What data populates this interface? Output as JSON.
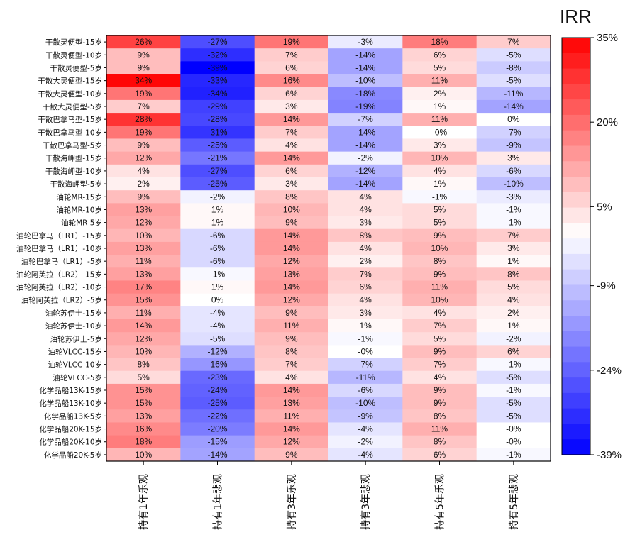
{
  "chart_data": {
    "type": "heatmap",
    "colorbar": {
      "title": "IRR",
      "min": -39,
      "max": 35,
      "ticks": [
        "35%",
        "20%",
        "5%",
        "-9%",
        "-24%",
        "-39%"
      ],
      "tick_values": [
        35,
        20,
        5,
        -9,
        -24,
        -39
      ],
      "colors": {
        "low": "#0000ff",
        "mid": "#ffffff",
        "high": "#ff0000"
      }
    },
    "columns": [
      "持有1年乐观",
      "持有1年悲观",
      "持有3年乐观",
      "持有3年悲观",
      "持有5年乐观",
      "持有5年悲观"
    ],
    "rows": [
      "干散灵便型-15岁",
      "干散灵便型-10岁",
      "干散灵便型-5岁",
      "干散大灵便型-15岁",
      "干散大灵便型-10岁",
      "干散大灵便型-5岁",
      "干散巴拿马型-15岁",
      "干散巴拿马型-10岁",
      "干散巴拿马型-5岁",
      "干散海岬型-15岁",
      "干散海岬型-10岁",
      "干散海岬型-5岁",
      "油轮MR-15岁",
      "油轮MR-10岁",
      "油轮MR-5岁",
      "油轮巴拿马（LR1）-15岁",
      "油轮巴拿马（LR1）-10岁",
      "油轮巴拿马（LR1）-5岁",
      "油轮阿芙拉（LR2）-15岁",
      "油轮阿芙拉（LR2）-10岁",
      "油轮阿芙拉（LR2）-5岁",
      "油轮苏伊士-15岁",
      "油轮苏伊士-10岁",
      "油轮苏伊士-5岁",
      "油轮VLCC-15岁",
      "油轮VLCC-10岁",
      "油轮VLCC-5岁",
      "化学品船13K-15岁",
      "化学品船13K-10岁",
      "化学品船13K-5岁",
      "化学品船20K-15岁",
      "化学品船20K-10岁",
      "化学品船20K-5岁"
    ],
    "labels": [
      [
        "26%",
        "-27%",
        "19%",
        "-3%",
        "18%",
        "7%"
      ],
      [
        "9%",
        "-32%",
        "7%",
        "-14%",
        "6%",
        "-5%"
      ],
      [
        "9%",
        "-39%",
        "6%",
        "-14%",
        "5%",
        "-8%"
      ],
      [
        "34%",
        "-33%",
        "16%",
        "-10%",
        "11%",
        "-5%"
      ],
      [
        "19%",
        "-34%",
        "6%",
        "-18%",
        "2%",
        "-11%"
      ],
      [
        "7%",
        "-29%",
        "3%",
        "-19%",
        "1%",
        "-14%"
      ],
      [
        "28%",
        "-28%",
        "14%",
        "-7%",
        "11%",
        "0%"
      ],
      [
        "19%",
        "-31%",
        "7%",
        "-14%",
        "-0%",
        "-7%"
      ],
      [
        "9%",
        "-25%",
        "4%",
        "-14%",
        "3%",
        "-9%"
      ],
      [
        "12%",
        "-21%",
        "14%",
        "-2%",
        "10%",
        "3%"
      ],
      [
        "4%",
        "-27%",
        "6%",
        "-12%",
        "4%",
        "-6%"
      ],
      [
        "2%",
        "-25%",
        "3%",
        "-14%",
        "1%",
        "-10%"
      ],
      [
        "9%",
        "-2%",
        "8%",
        "4%",
        "-1%",
        "-3%"
      ],
      [
        "13%",
        "1%",
        "10%",
        "4%",
        "5%",
        "-1%"
      ],
      [
        "12%",
        "1%",
        "9%",
        "3%",
        "5%",
        "-1%"
      ],
      [
        "10%",
        "-6%",
        "14%",
        "8%",
        "9%",
        "7%"
      ],
      [
        "13%",
        "-6%",
        "14%",
        "4%",
        "10%",
        "3%"
      ],
      [
        "11%",
        "-6%",
        "12%",
        "2%",
        "8%",
        "1%"
      ],
      [
        "13%",
        "-1%",
        "13%",
        "7%",
        "9%",
        "8%"
      ],
      [
        "17%",
        "1%",
        "14%",
        "6%",
        "11%",
        "5%"
      ],
      [
        "15%",
        "0%",
        "12%",
        "4%",
        "10%",
        "4%"
      ],
      [
        "11%",
        "-4%",
        "9%",
        "3%",
        "4%",
        "2%"
      ],
      [
        "14%",
        "-4%",
        "11%",
        "1%",
        "7%",
        "1%"
      ],
      [
        "12%",
        "-5%",
        "9%",
        "-1%",
        "5%",
        "-2%"
      ],
      [
        "10%",
        "-12%",
        "8%",
        "-0%",
        "9%",
        "6%"
      ],
      [
        "8%",
        "-16%",
        "7%",
        "-7%",
        "7%",
        "-1%"
      ],
      [
        "5%",
        "-23%",
        "4%",
        "-11%",
        "4%",
        "-5%"
      ],
      [
        "15%",
        "-24%",
        "14%",
        "-6%",
        "9%",
        "-1%"
      ],
      [
        "15%",
        "-25%",
        "13%",
        "-10%",
        "9%",
        "-5%"
      ],
      [
        "13%",
        "-22%",
        "11%",
        "-9%",
        "8%",
        "-5%"
      ],
      [
        "16%",
        "-20%",
        "14%",
        "-4%",
        "11%",
        "-0%"
      ],
      [
        "18%",
        "-15%",
        "12%",
        "-2%",
        "8%",
        "-0%"
      ],
      [
        "10%",
        "-14%",
        "9%",
        "-4%",
        "6%",
        "-1%"
      ]
    ]
  }
}
